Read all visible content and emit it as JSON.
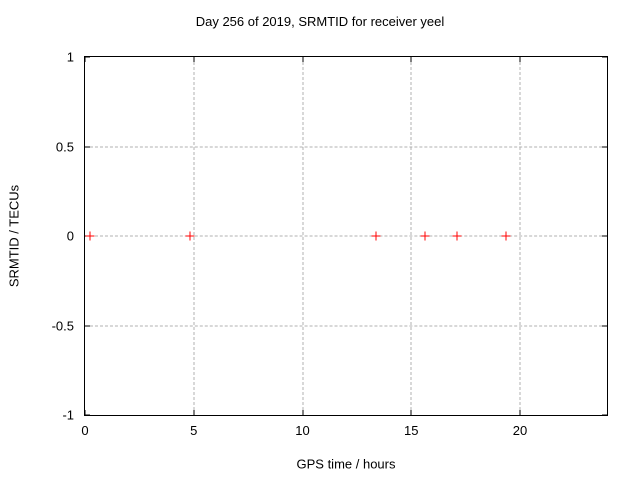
{
  "chart_data": {
    "type": "scatter",
    "title": "Day 256 of 2019, SRMTID for receiver yeel",
    "xlabel": "GPS time / hours",
    "ylabel": "SRMTID / TECUs",
    "xlim": [
      0,
      24
    ],
    "ylim": [
      -1,
      1
    ],
    "xticks": [
      0,
      5,
      10,
      15,
      20
    ],
    "xtick_labels": [
      "0",
      "5",
      "10",
      "15",
      "20"
    ],
    "yticks": [
      -1,
      -0.5,
      0,
      0.5,
      1
    ],
    "ytick_labels": [
      "-1",
      "-0.5",
      "0",
      "0.5",
      "1"
    ],
    "grid": true,
    "legend": "none",
    "series": [
      {
        "name": "SRMTID",
        "marker": "plus",
        "color": "#ff0000",
        "points": [
          {
            "x": 0.25,
            "y": 0
          },
          {
            "x": 4.85,
            "y": 0
          },
          {
            "x": 13.4,
            "y": 0
          },
          {
            "x": 15.65,
            "y": 0
          },
          {
            "x": 17.1,
            "y": 0
          },
          {
            "x": 19.35,
            "y": 0
          }
        ]
      }
    ],
    "colors": {
      "background": "#ffffff",
      "axis": "#000000",
      "grid": "#b0b0b0",
      "marker": "#ff0000",
      "text": "#000000"
    }
  }
}
